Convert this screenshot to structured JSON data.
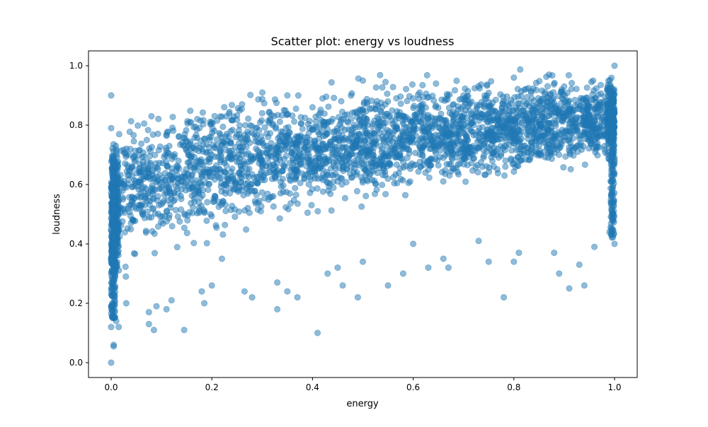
{
  "chart_data": {
    "type": "scatter",
    "title": "Scatter plot: energy vs loudness",
    "xlabel": "energy",
    "ylabel": "loudness",
    "xlim": [
      -0.045,
      1.045
    ],
    "ylim": [
      -0.05,
      1.05
    ],
    "xticks": [
      0.0,
      0.2,
      0.4,
      0.6,
      0.8,
      1.0
    ],
    "xtick_labels": [
      "0.0",
      "0.2",
      "0.4",
      "0.6",
      "0.8",
      "1.0"
    ],
    "yticks": [
      0.0,
      0.2,
      0.4,
      0.6,
      0.8,
      1.0
    ],
    "ytick_labels": [
      "0.0",
      "0.2",
      "0.4",
      "0.6",
      "0.8",
      "1.0"
    ],
    "grid": false,
    "legend": "none",
    "marker_color": "#1f77b4",
    "marker_alpha": 0.5,
    "trend_description": "dense band rising from about 0.45 at energy 0 to about 0.82 at energy 1",
    "points": [
      [
        0.0,
        0.9
      ],
      [
        0.0,
        0.79
      ],
      [
        0.0,
        0.12
      ],
      [
        0.0,
        0.0
      ],
      [
        0.005,
        0.06
      ],
      [
        0.005,
        0.055
      ],
      [
        0.01,
        0.14
      ],
      [
        0.015,
        0.12
      ],
      [
        0.03,
        0.2
      ],
      [
        0.08,
        0.83
      ],
      [
        0.075,
        0.17
      ],
      [
        0.085,
        0.11
      ],
      [
        0.075,
        0.13
      ],
      [
        0.09,
        0.19
      ],
      [
        0.11,
        0.18
      ],
      [
        0.12,
        0.21
      ],
      [
        0.145,
        0.11
      ],
      [
        0.18,
        0.24
      ],
      [
        0.185,
        0.2
      ],
      [
        0.2,
        0.26
      ],
      [
        0.22,
        0.35
      ],
      [
        0.26,
        0.87
      ],
      [
        0.265,
        0.24
      ],
      [
        0.28,
        0.22
      ],
      [
        0.33,
        0.18
      ],
      [
        0.33,
        0.27
      ],
      [
        0.35,
        0.24
      ],
      [
        0.35,
        0.9
      ],
      [
        0.37,
        0.22
      ],
      [
        0.41,
        0.1
      ],
      [
        0.42,
        0.89
      ],
      [
        0.43,
        0.3
      ],
      [
        0.45,
        0.32
      ],
      [
        0.46,
        0.26
      ],
      [
        0.49,
        0.22
      ],
      [
        0.5,
        0.95
      ],
      [
        0.5,
        0.34
      ],
      [
        0.55,
        0.26
      ],
      [
        0.58,
        0.3
      ],
      [
        0.6,
        0.4
      ],
      [
        0.63,
        0.32
      ],
      [
        0.66,
        0.35
      ],
      [
        0.67,
        0.32
      ],
      [
        0.73,
        0.41
      ],
      [
        0.75,
        0.34
      ],
      [
        0.78,
        0.22
      ],
      [
        0.8,
        0.96
      ],
      [
        0.8,
        0.34
      ],
      [
        0.81,
        0.37
      ],
      [
        0.87,
        0.97
      ],
      [
        0.88,
        0.37
      ],
      [
        0.89,
        0.3
      ],
      [
        0.91,
        0.25
      ],
      [
        0.94,
        0.26
      ],
      [
        0.93,
        0.33
      ],
      [
        0.96,
        0.39
      ],
      [
        0.99,
        0.44
      ],
      [
        1.0,
        1.0
      ],
      [
        1.0,
        0.4
      ],
      [
        0.2,
        0.81
      ],
      [
        0.3,
        0.84
      ],
      [
        0.4,
        0.86
      ],
      [
        0.6,
        0.89
      ],
      [
        0.7,
        0.9
      ],
      [
        0.9,
        0.93
      ]
    ],
    "bulk_points_description": "remaining points fill the dense band",
    "band_count": 3400
  }
}
